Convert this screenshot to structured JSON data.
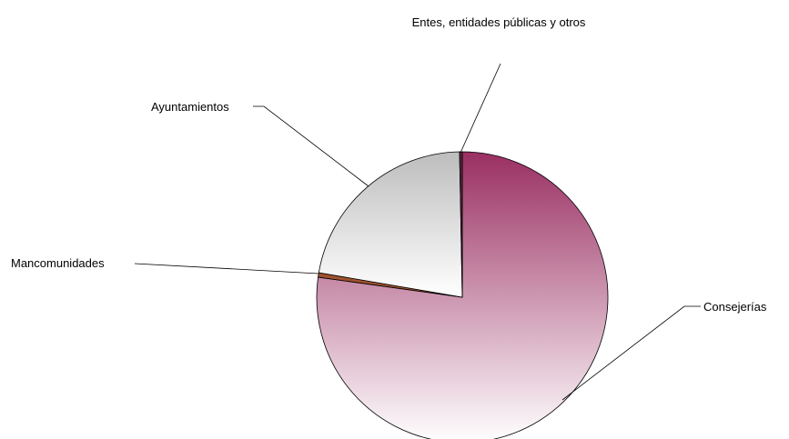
{
  "chart_data": {
    "type": "pie",
    "categories": [
      "Consejerías",
      "Mancomunidades",
      "Ayuntamientos",
      "Entes, entidades públicas y otros"
    ],
    "values": [
      77.2,
      0.5,
      22.0,
      0.3
    ],
    "colors": [
      "#9a2f62",
      "#a0522d",
      "#bdbdbd",
      "#5a2a3a"
    ]
  }
}
